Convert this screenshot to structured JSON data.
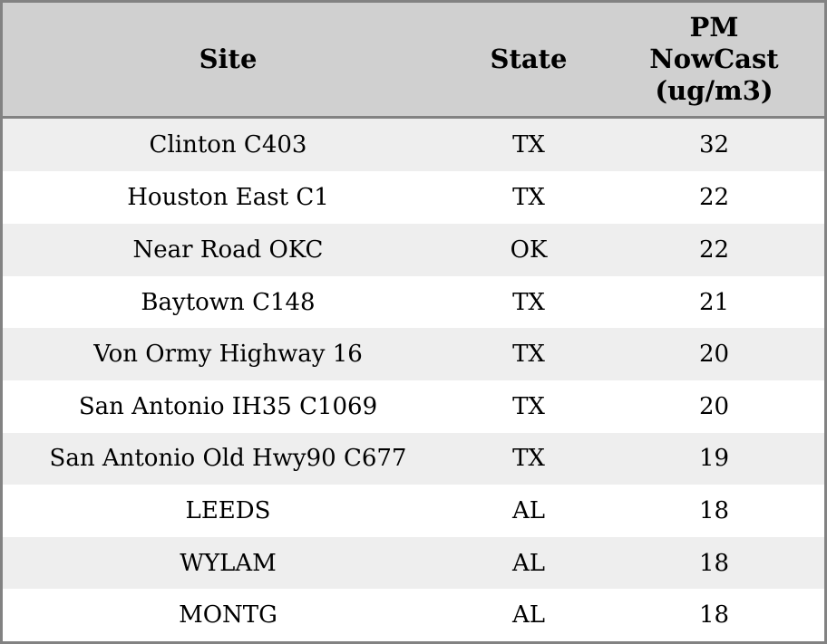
{
  "chart_data": {
    "type": "table",
    "columns": [
      {
        "id": "site",
        "label": "Site"
      },
      {
        "id": "state",
        "label": "State"
      },
      {
        "id": "pm_nowcast",
        "label": "PM NowCast (ug/m3)",
        "label_lines": [
          "PM",
          "NowCast",
          "(ug/m3)"
        ]
      }
    ],
    "rows": [
      {
        "site": "Clinton C403",
        "state": "TX",
        "pm_nowcast": 32
      },
      {
        "site": "Houston East C1",
        "state": "TX",
        "pm_nowcast": 22
      },
      {
        "site": "Near Road OKC",
        "state": "OK",
        "pm_nowcast": 22
      },
      {
        "site": "Baytown C148",
        "state": "TX",
        "pm_nowcast": 21
      },
      {
        "site": "Von Ormy Highway 16",
        "state": "TX",
        "pm_nowcast": 20
      },
      {
        "site": "San Antonio IH35 C1069",
        "state": "TX",
        "pm_nowcast": 20
      },
      {
        "site": "San Antonio Old Hwy90 C677",
        "state": "TX",
        "pm_nowcast": 19
      },
      {
        "site": "LEEDS",
        "state": "AL",
        "pm_nowcast": 18
      },
      {
        "site": "WYLAM",
        "state": "AL",
        "pm_nowcast": 18
      },
      {
        "site": "MONTG",
        "state": "AL",
        "pm_nowcast": 18
      }
    ],
    "layout": {
      "striped_rows": true,
      "stripe_pattern": "odd-rows-shaded"
    }
  },
  "colors": {
    "header_bg": "#d0d0d0",
    "stripe_row_bg": "#eeeeee",
    "plain_row_bg": "#ffffff",
    "border": "#828282",
    "text": "#000000"
  }
}
